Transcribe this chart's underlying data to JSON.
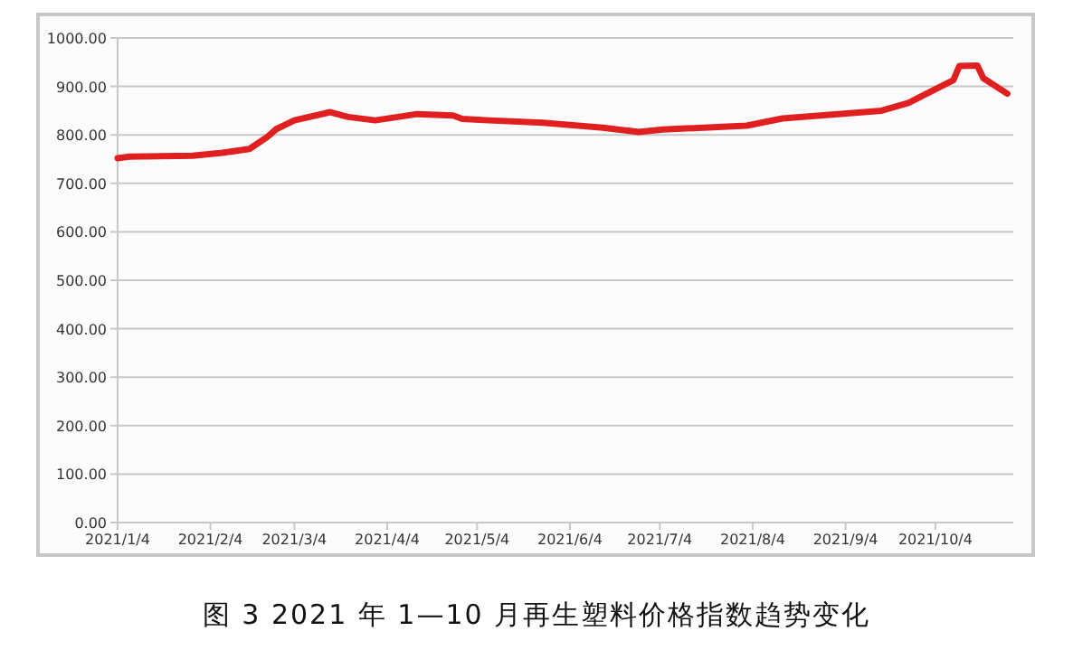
{
  "chart_data": {
    "type": "line",
    "title": "图 3 2021 年 1—10 月再生塑料价格指数趋势变化",
    "x": [
      "2021-01-04",
      "2021-01-08",
      "2021-01-29",
      "2021-02-08",
      "2021-02-17",
      "2021-02-23",
      "2021-02-26",
      "2021-03-04",
      "2021-03-16",
      "2021-03-22",
      "2021-03-31",
      "2021-04-14",
      "2021-04-26",
      "2021-04-29",
      "2021-05-08",
      "2021-05-26",
      "2021-06-15",
      "2021-06-27",
      "2021-07-05",
      "2021-08-02",
      "2021-08-14",
      "2021-09-16",
      "2021-09-25",
      "2021-10-10",
      "2021-10-12",
      "2021-10-18",
      "2021-10-20",
      "2021-10-28"
    ],
    "series": [
      {
        "color": "#e02020",
        "values": [
          752,
          755,
          757,
          763,
          771,
          796,
          812,
          830,
          847,
          837,
          830,
          843,
          840,
          833,
          830,
          825,
          815,
          806,
          811,
          819,
          834,
          850,
          866,
          913,
          942,
          943,
          917,
          885
        ]
      }
    ],
    "xlim": [
      "2021-01-04",
      "2021-10-30"
    ],
    "xticks": [
      {
        "value": "2021-01-04",
        "label": "2021/1/4"
      },
      {
        "value": "2021-02-04",
        "label": "2021/2/4"
      },
      {
        "value": "2021-03-04",
        "label": "2021/3/4"
      },
      {
        "value": "2021-04-04",
        "label": "2021/4/4"
      },
      {
        "value": "2021-05-04",
        "label": "2021/5/4"
      },
      {
        "value": "2021-06-04",
        "label": "2021/6/4"
      },
      {
        "value": "2021-07-04",
        "label": "2021/7/4"
      },
      {
        "value": "2021-08-04",
        "label": "2021/8/4"
      },
      {
        "value": "2021-09-04",
        "label": "2021/9/4"
      },
      {
        "value": "2021-10-04",
        "label": "2021/10/4"
      }
    ],
    "ylim": [
      0,
      1000
    ],
    "yticks": [
      {
        "value": 0,
        "label": "0.00"
      },
      {
        "value": 100,
        "label": "100.00"
      },
      {
        "value": 200,
        "label": "200.00"
      },
      {
        "value": 300,
        "label": "300.00"
      },
      {
        "value": 400,
        "label": "400.00"
      },
      {
        "value": 500,
        "label": "500.00"
      },
      {
        "value": 600,
        "label": "600.00"
      },
      {
        "value": 700,
        "label": "700.00"
      },
      {
        "value": 800,
        "label": "800.00"
      },
      {
        "value": 900,
        "label": "900.00"
      },
      {
        "value": 1000,
        "label": "1000.00"
      }
    ],
    "grid": "y",
    "marker": "none",
    "line_style": "solid"
  }
}
